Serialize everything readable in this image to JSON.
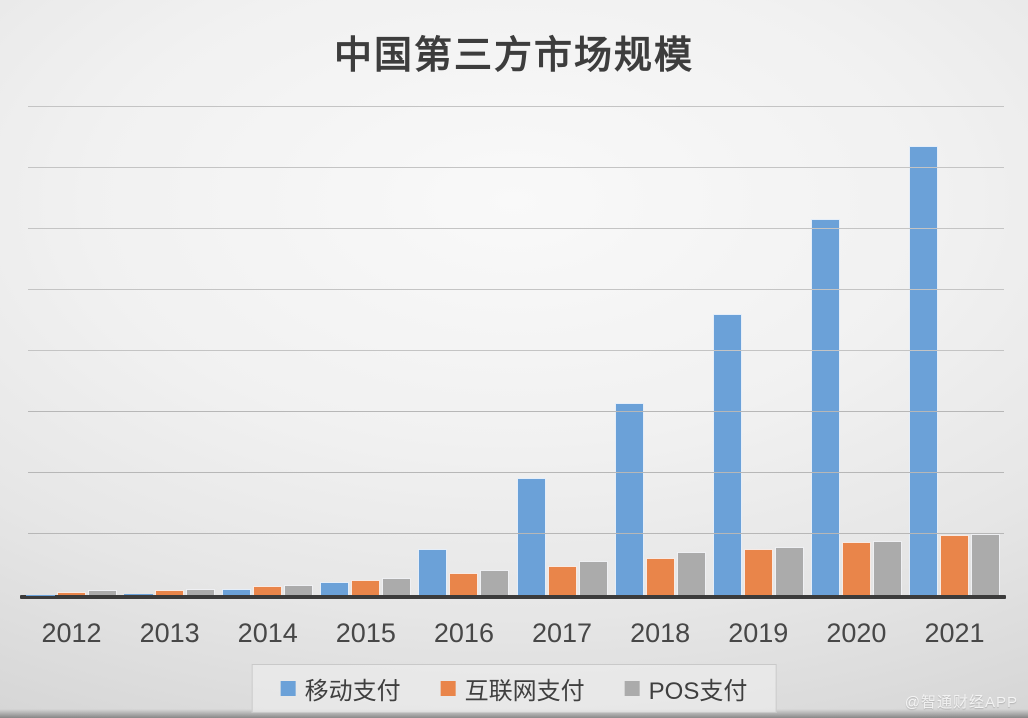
{
  "title": "中国第三方市场规模",
  "watermark": "@智通财经APP",
  "colors": {
    "mobile_blue": "#6BA1D8",
    "internet_orange": "#E9854A",
    "pos_gray": "#ABABAB",
    "axis": "#3b3b3b",
    "gridline": "#c4c4c4",
    "title_text": "#3d3d3d",
    "axis_label_text": "#474747"
  },
  "chart_data": {
    "type": "bar",
    "title": "中国第三方市场规模",
    "categories": [
      "2012",
      "2013",
      "2014",
      "2015",
      "2016",
      "2017",
      "2018",
      "2019",
      "2020",
      "2021"
    ],
    "series": [
      {
        "name": "移动支付",
        "color": "#6BA1D8",
        "values": [
          0.4,
          0.8,
          5.0,
          11.0,
          37.5,
          96.0,
          157.5,
          230.0,
          308.5,
          368.0
        ]
      },
      {
        "name": "互联网支付",
        "color": "#E9854A",
        "values": [
          2.5,
          4.2,
          7.0,
          12.0,
          18.0,
          24.0,
          30.0,
          37.5,
          43.5,
          49.5
        ]
      },
      {
        "name": "POS支付",
        "color": "#ABABAB",
        "values": [
          4.0,
          4.7,
          8.5,
          14.0,
          20.5,
          27.5,
          35.0,
          39.0,
          44.0,
          50.0
        ]
      }
    ],
    "xlabel": "",
    "ylabel": "",
    "ylim": [
      0,
      400
    ],
    "y_gridline_interval": 50,
    "y_axis_labels_visible": false,
    "values_note": "estimated from unlabeled gridlines; 1 gridline interval = 50 units",
    "grid": true,
    "legend_position": "bottom"
  }
}
